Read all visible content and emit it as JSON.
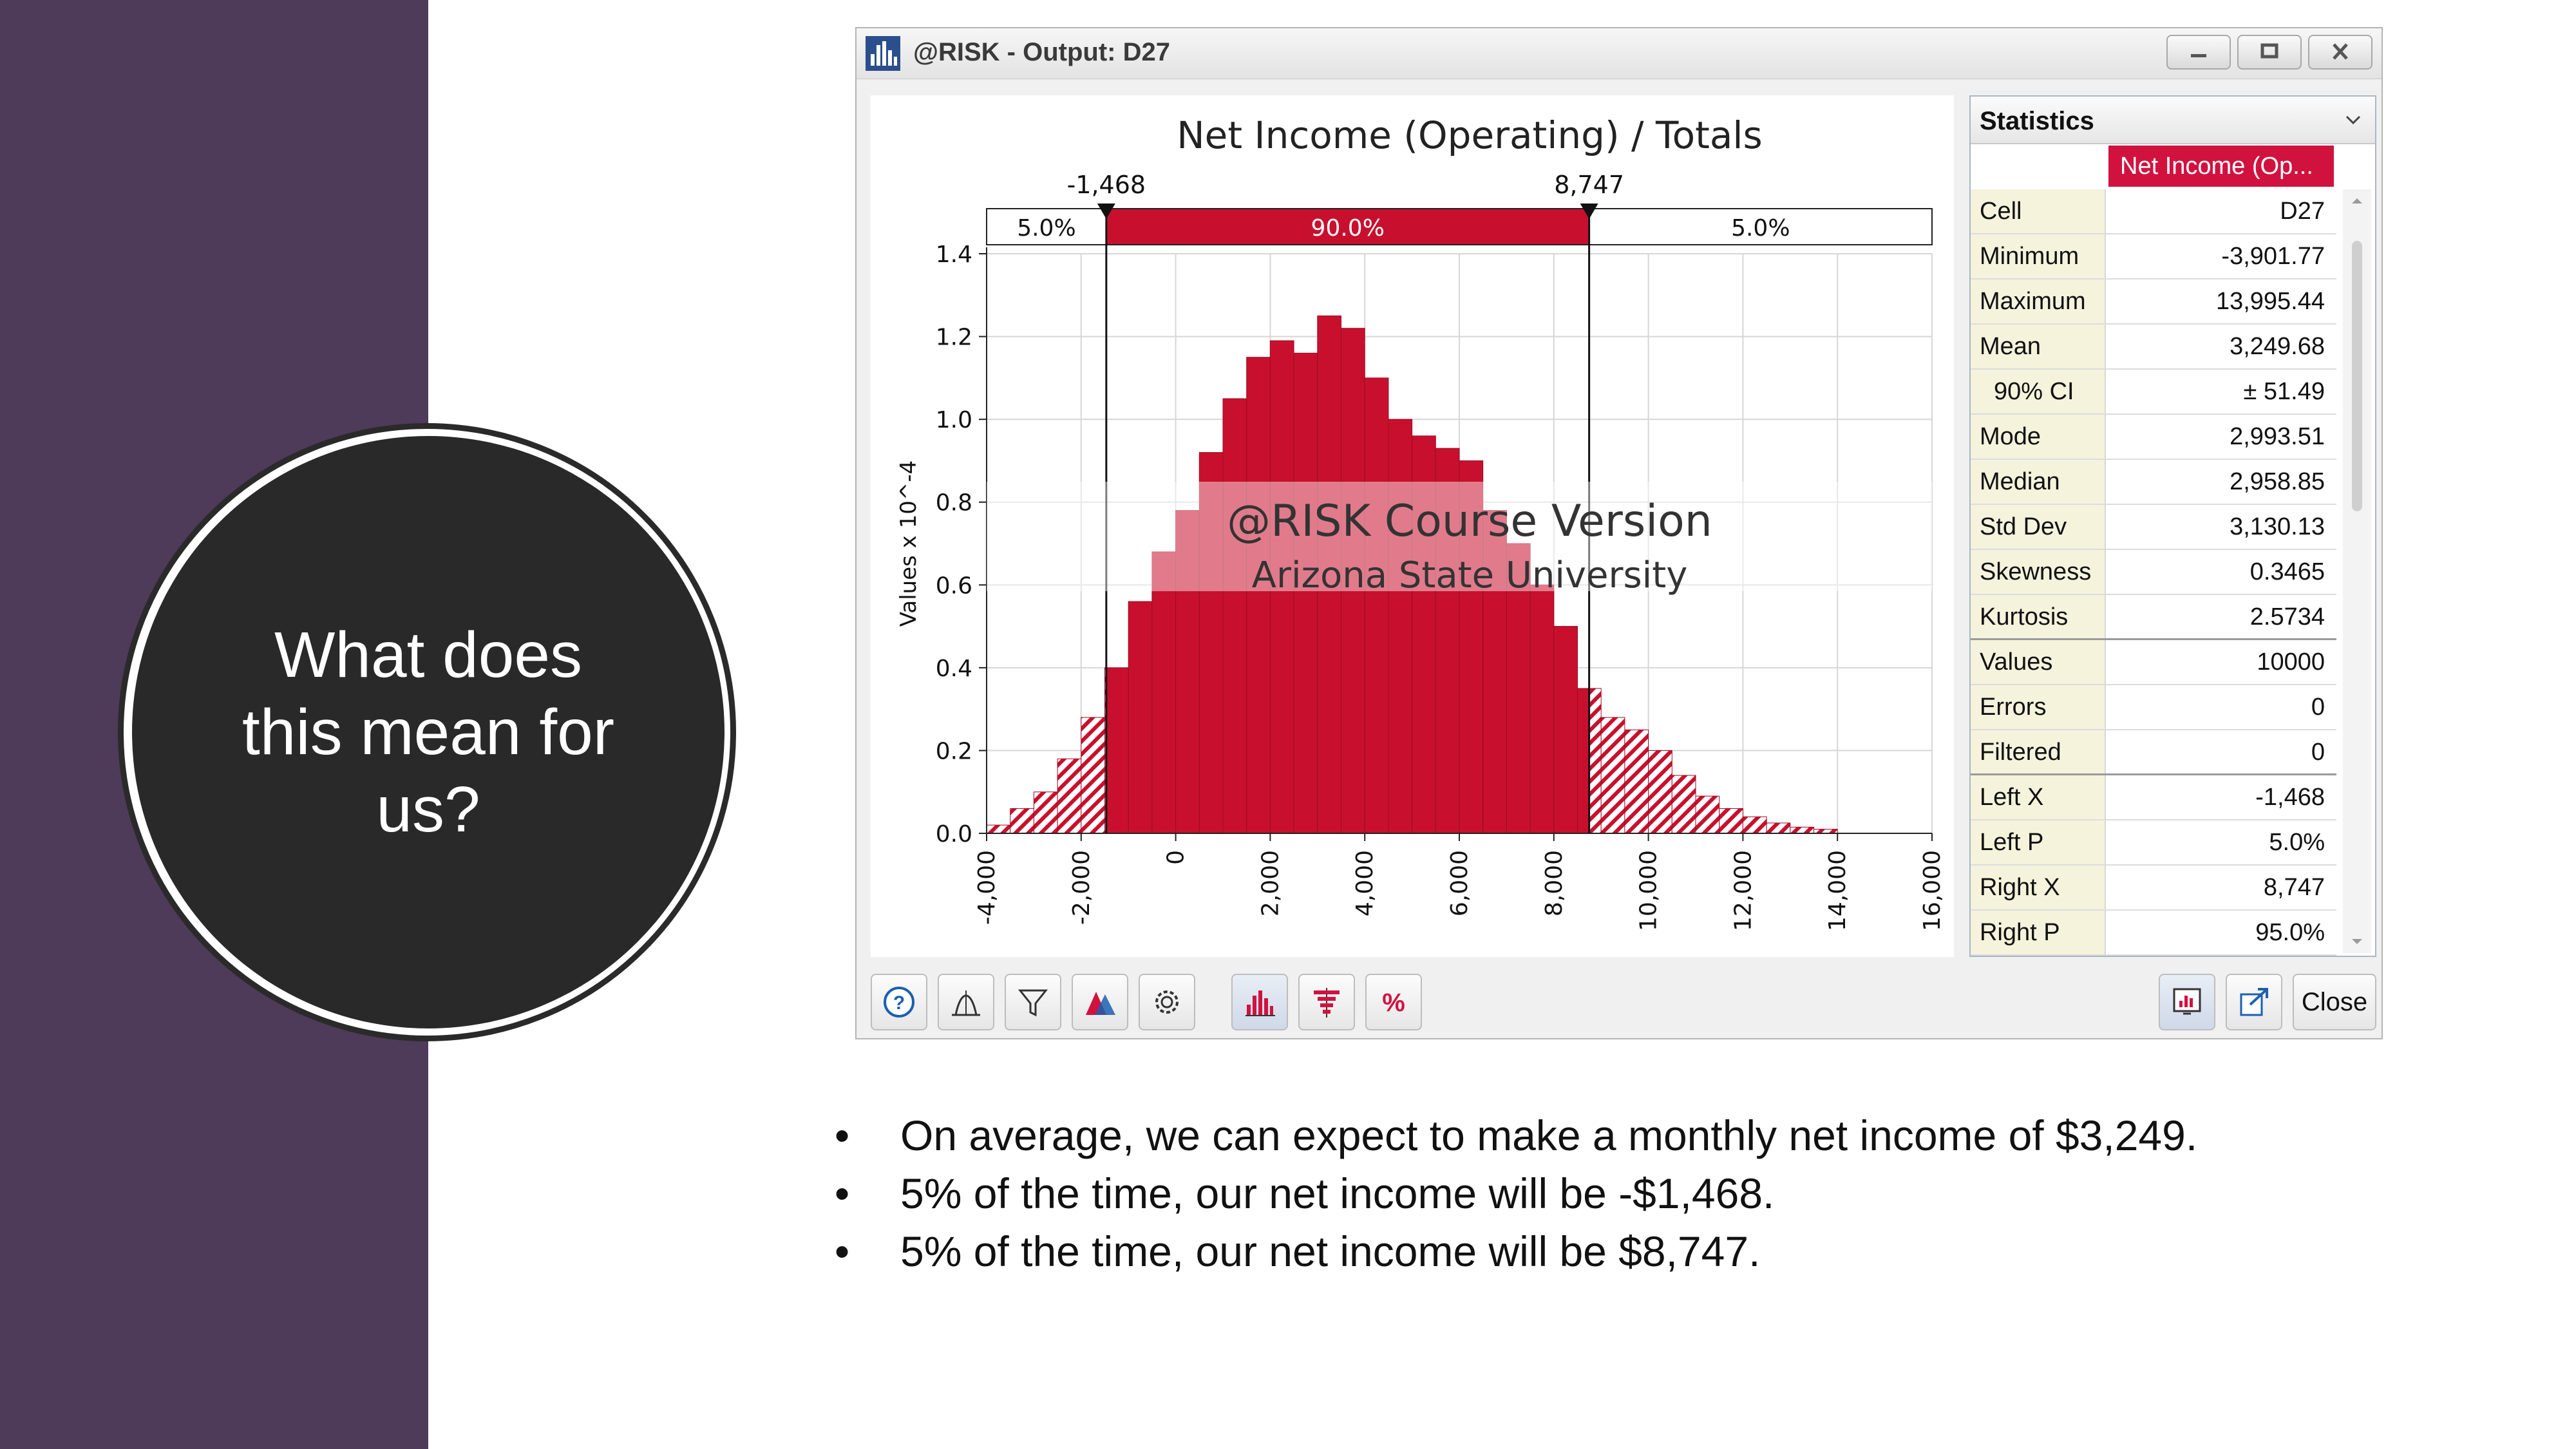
{
  "slide": {
    "heading": "What does this mean for us?",
    "bullets": [
      "On average, we can expect to make a monthly net income of $3,249.",
      "5% of the time, our net income will be -$1,468.",
      "5% of the time, our net income will be $8,747."
    ],
    "bullet_glyph": "•",
    "colors": {
      "sidebar": "#4e3a59",
      "circle": "#2a2929"
    }
  },
  "window": {
    "title": "@RISK - Output: D27",
    "icon": "histogram-app-icon",
    "controls": [
      "minimize-icon",
      "maximize-icon",
      "close-icon"
    ]
  },
  "watermark": {
    "line1": "@RISK Course Version",
    "line2": "Arizona State University"
  },
  "chart_data": {
    "type": "bar",
    "title": "Net Income (Operating) / Totals",
    "xlabel": "",
    "ylabel": "Values x 10^-4",
    "xlim": [
      -4000,
      16000
    ],
    "ylim": [
      0,
      1.4
    ],
    "bin_width": 500,
    "x": [
      -3750,
      -3250,
      -2750,
      -2250,
      -1750,
      -1250,
      -750,
      -250,
      250,
      750,
      1250,
      1750,
      2250,
      2750,
      3250,
      3750,
      4250,
      4750,
      5250,
      5750,
      6250,
      6750,
      7250,
      7750,
      8250,
      8750,
      9250,
      9750,
      10250,
      10750,
      11250,
      11750,
      12250,
      12750,
      13250,
      13750
    ],
    "values": [
      0.02,
      0.06,
      0.1,
      0.18,
      0.28,
      0.4,
      0.56,
      0.68,
      0.78,
      0.92,
      1.05,
      1.15,
      1.19,
      1.16,
      1.25,
      1.22,
      1.1,
      1.0,
      0.96,
      0.93,
      0.9,
      0.78,
      0.7,
      0.6,
      0.5,
      0.35,
      0.28,
      0.25,
      0.2,
      0.14,
      0.09,
      0.06,
      0.04,
      0.025,
      0.015,
      0.01
    ],
    "x_ticks": [
      "-4,000",
      "-2,000",
      "0",
      "2,000",
      "4,000",
      "6,000",
      "8,000",
      "10,000",
      "12,000",
      "14,000",
      "16,000"
    ],
    "x_tick_values": [
      -4000,
      -2000,
      0,
      2000,
      4000,
      6000,
      8000,
      10000,
      12000,
      14000,
      16000
    ],
    "y_ticks": [
      "0.0",
      "0.2",
      "0.4",
      "0.6",
      "0.8",
      "1.0",
      "1.2",
      "1.4"
    ],
    "y_tick_values": [
      0,
      0.2,
      0.4,
      0.6,
      0.8,
      1.0,
      1.2,
      1.4
    ],
    "grid": true,
    "bar_color": "#c8102e",
    "delimiters": {
      "left": {
        "value": -1468,
        "label": "-1,468"
      },
      "right": {
        "value": 8747,
        "label": "8,747"
      }
    },
    "percent_bar": [
      "5.0%",
      "90.0%",
      "5.0%"
    ]
  },
  "statistics": {
    "title": "Statistics",
    "column": "Net Income (Op...",
    "rows": [
      {
        "label": "Cell",
        "value": "D27"
      },
      {
        "label": "Minimum",
        "value": "-3,901.77"
      },
      {
        "label": "Maximum",
        "value": "13,995.44"
      },
      {
        "label": "Mean",
        "value": "3,249.68"
      },
      {
        "label": "90% CI",
        "value": "± 51.49"
      },
      {
        "label": "Mode",
        "value": "2,993.51"
      },
      {
        "label": "Median",
        "value": "2,958.85"
      },
      {
        "label": "Std Dev",
        "value": "3,130.13"
      },
      {
        "label": "Skewness",
        "value": "0.3465"
      },
      {
        "label": "Kurtosis",
        "value": "2.5734"
      },
      {
        "label": "Values",
        "value": "10000"
      },
      {
        "label": "Errors",
        "value": "0"
      },
      {
        "label": "Filtered",
        "value": "0"
      },
      {
        "label": "Left X",
        "value": "-1,468"
      },
      {
        "label": "Left P",
        "value": "5.0%"
      },
      {
        "label": "Right X",
        "value": "8,747"
      },
      {
        "label": "Right P",
        "value": "95.0%"
      }
    ]
  },
  "toolbar": {
    "left_icons": [
      "help-icon",
      "distribution-fit-icon",
      "filter-icon",
      "overlay-icon",
      "settings-gear-icon"
    ],
    "graph_icons": [
      "histogram-icon",
      "tornado-icon",
      "percent-icon"
    ],
    "right_icons": [
      "report-icon",
      "export-icon"
    ],
    "close_label": "Close"
  }
}
